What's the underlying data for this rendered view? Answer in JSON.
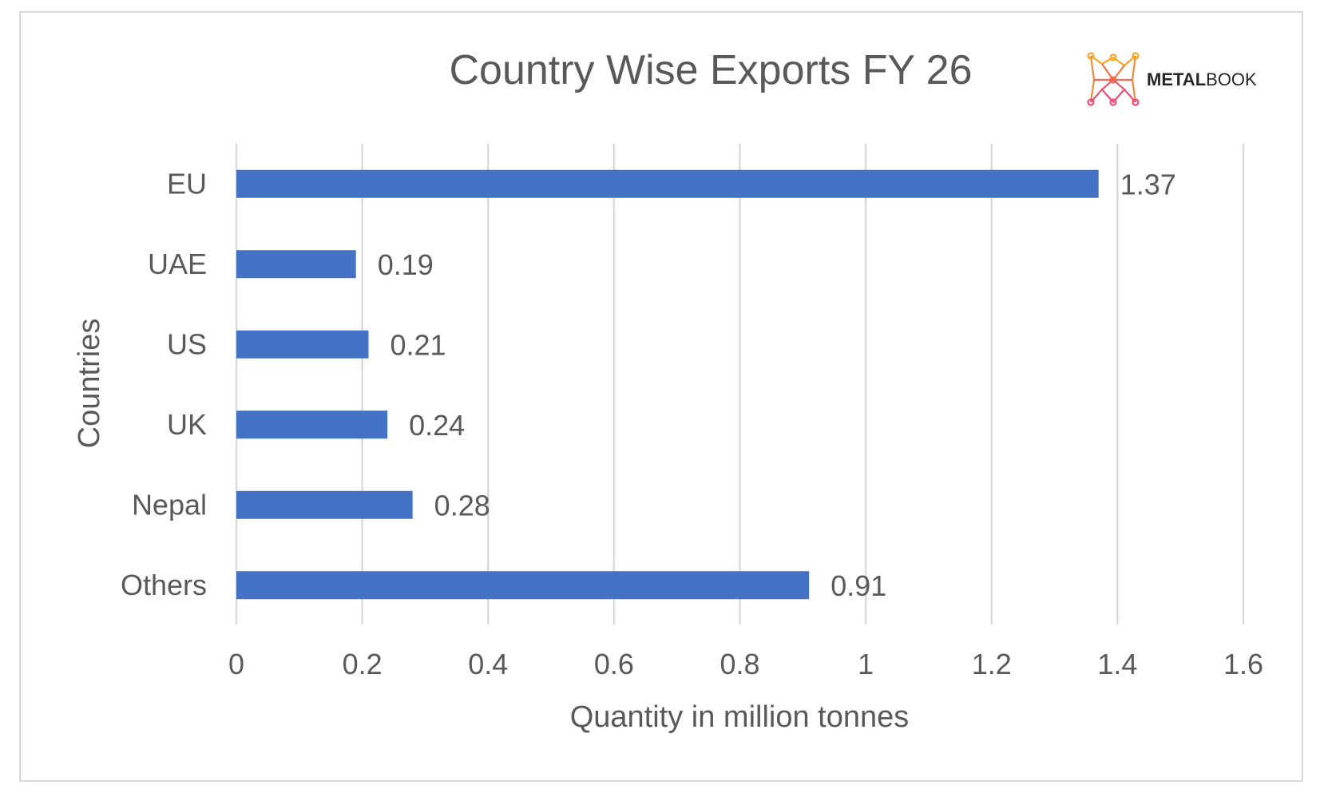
{
  "logo": {
    "text_bold": "METAL",
    "text_regular": "BOOK",
    "colors": [
      "#f5a623",
      "#e94e77"
    ]
  },
  "chart_data": {
    "type": "bar",
    "orientation": "horizontal",
    "title": "Country Wise Exports FY 26",
    "xlabel": "Quantity in million tonnes",
    "ylabel": "Countries",
    "categories": [
      "EU",
      "UAE",
      "US",
      "UK",
      "Nepal",
      "Others"
    ],
    "values": [
      1.37,
      0.19,
      0.21,
      0.24,
      0.28,
      0.91
    ],
    "data_labels": [
      "1.37",
      "0.19",
      "0.21",
      "0.24",
      "0.28",
      "0.91"
    ],
    "xlim": [
      0,
      1.6
    ],
    "xticks": [
      0,
      0.2,
      0.4,
      0.6,
      0.8,
      1,
      1.2,
      1.4,
      1.6
    ],
    "xtick_labels": [
      "0",
      "0.2",
      "0.4",
      "0.6",
      "0.8",
      "1",
      "1.2",
      "1.4",
      "1.6"
    ],
    "grid": "vertical",
    "legend": "none",
    "bar_color": "#4472c4",
    "grid_color": "#d9d9d9",
    "text_color": "#595959"
  }
}
